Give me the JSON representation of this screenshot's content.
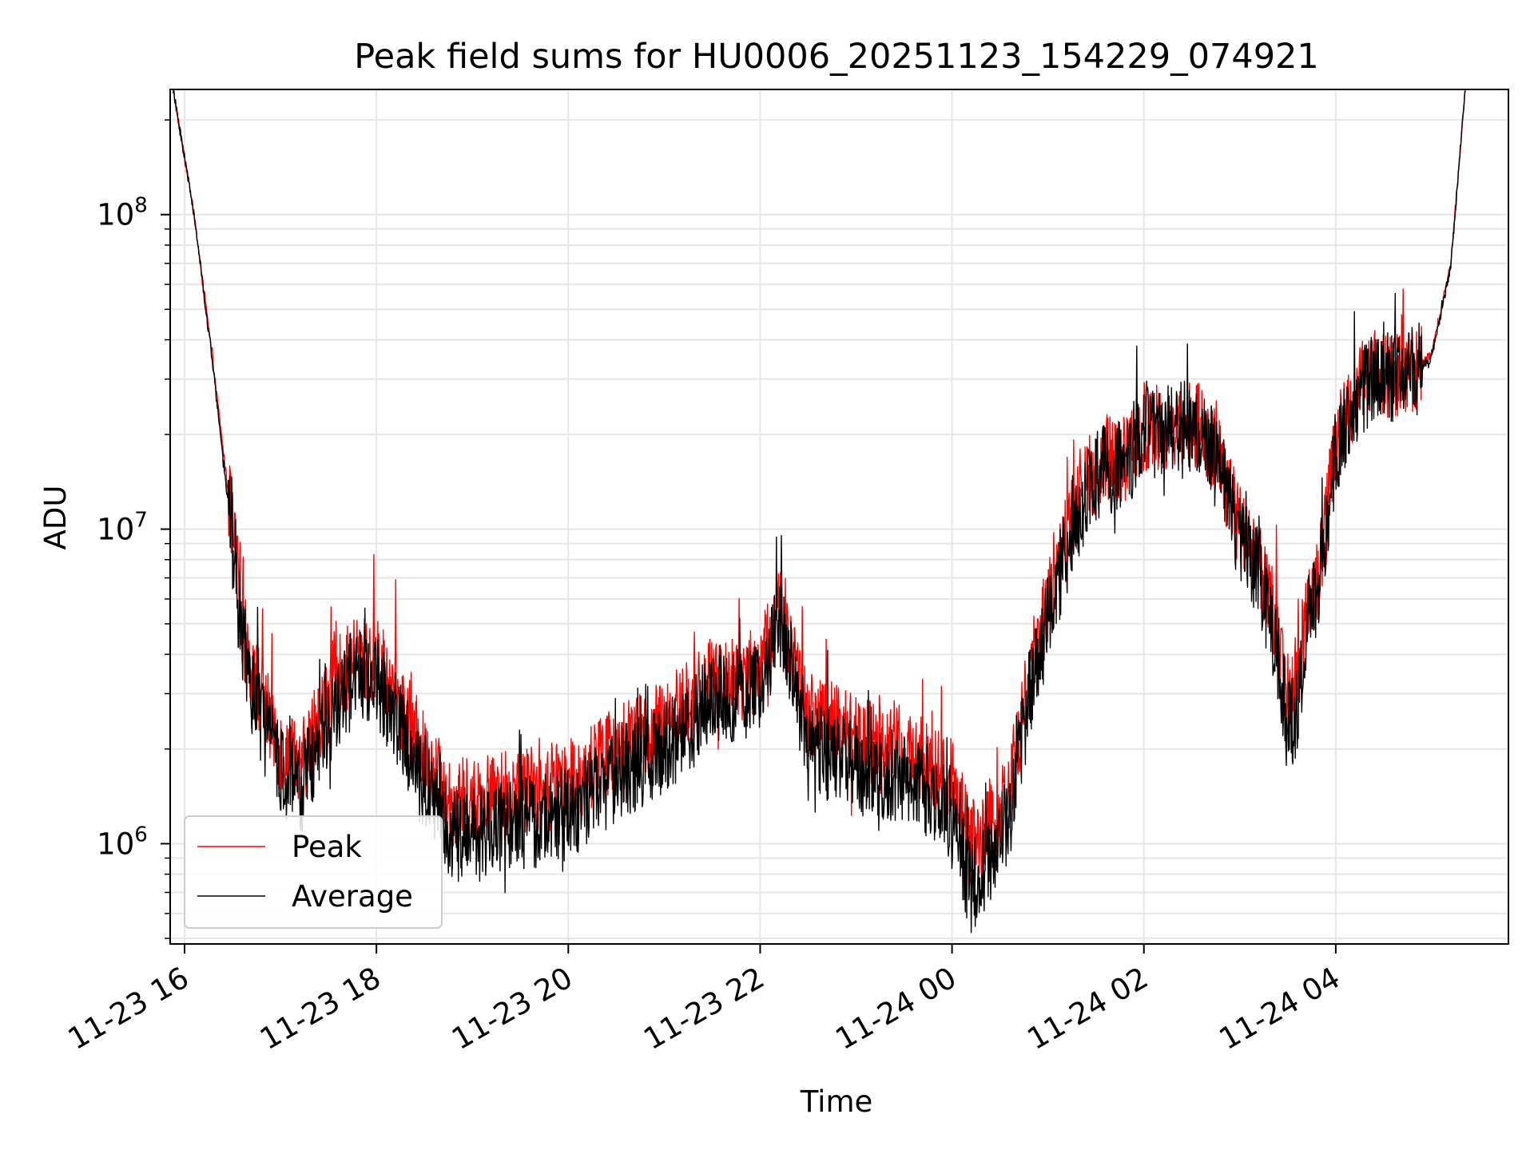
{
  "chart_data": {
    "type": "line",
    "title": "Peak field sums for HU0006_20251123_154229_074921",
    "xlabel": "Time",
    "ylabel": "ADU",
    "yscale": "log",
    "ylim": [
      480000,
      250000000
    ],
    "xlim_hours": [
      -0.15,
      13.8
    ],
    "x_reference": "2025-11-23 16:00",
    "grid": true,
    "legend_position": "lower-left",
    "x_ticks": [
      {
        "hours": 0,
        "label": "11-23 16"
      },
      {
        "hours": 2,
        "label": "11-23 18"
      },
      {
        "hours": 4,
        "label": "11-23 20"
      },
      {
        "hours": 6,
        "label": "11-23 22"
      },
      {
        "hours": 8,
        "label": "11-24 00"
      },
      {
        "hours": 10,
        "label": "11-24 02"
      },
      {
        "hours": 12,
        "label": "11-24 04"
      }
    ],
    "y_ticks": [
      {
        "value": 1000000,
        "base": "10",
        "exp": "6"
      },
      {
        "value": 10000000,
        "base": "10",
        "exp": "7"
      },
      {
        "value": 100000000,
        "base": "10",
        "exp": "8"
      }
    ],
    "series": [
      {
        "name": "Peak",
        "color": "#ff0000",
        "noise_amp": 0.14,
        "x_hours": [
          -0.12,
          0.1,
          0.3,
          0.5,
          0.6,
          0.75,
          1.0,
          1.2,
          1.4,
          1.6,
          1.8,
          2.0,
          2.2,
          2.5,
          2.8,
          3.0,
          3.5,
          4.0,
          4.5,
          5.0,
          5.5,
          5.8,
          6.0,
          6.2,
          6.3,
          6.5,
          6.7,
          7.0,
          7.5,
          7.8,
          8.0,
          8.2,
          8.4,
          8.6,
          8.8,
          9.0,
          9.2,
          9.4,
          9.6,
          9.8,
          10.0,
          10.2,
          10.4,
          10.6,
          10.8,
          11.0,
          11.2,
          11.4,
          11.5,
          11.6,
          11.7,
          11.8,
          12.0,
          12.2,
          12.4,
          12.6,
          12.8,
          13.0,
          13.2,
          13.35
        ],
        "values": [
          250000000,
          100000000,
          33000000,
          10000000,
          5200000,
          3200000,
          2000000,
          1700000,
          2500000,
          3300000,
          3900000,
          3800000,
          3000000,
          1900000,
          1350000,
          1400000,
          1450000,
          1550000,
          2000000,
          2400000,
          3300000,
          3400000,
          3600000,
          5800000,
          4700000,
          2600000,
          2400000,
          2200000,
          2000000,
          1800000,
          1550000,
          1000000,
          1100000,
          1500000,
          3300000,
          5800000,
          9500000,
          14000000,
          17000000,
          16000000,
          21000000,
          21000000,
          22000000,
          21500000,
          16000000,
          10000000,
          8000000,
          4500000,
          2700000,
          3200000,
          5500000,
          6500000,
          19000000,
          27000000,
          32000000,
          31000000,
          32000000,
          36000000,
          70000000,
          250000000
        ]
      },
      {
        "name": "Average",
        "color": "#000000",
        "noise_amp": 0.15,
        "x_hours": [
          -0.12,
          0.1,
          0.3,
          0.5,
          0.6,
          0.75,
          1.0,
          1.2,
          1.4,
          1.6,
          1.8,
          2.0,
          2.2,
          2.5,
          2.8,
          3.0,
          3.5,
          4.0,
          4.5,
          5.0,
          5.5,
          5.8,
          6.0,
          6.2,
          6.3,
          6.5,
          6.7,
          7.0,
          7.5,
          7.8,
          8.0,
          8.2,
          8.4,
          8.6,
          8.8,
          9.0,
          9.2,
          9.4,
          9.6,
          9.8,
          10.0,
          10.2,
          10.4,
          10.6,
          10.8,
          11.0,
          11.2,
          11.4,
          11.5,
          11.6,
          11.7,
          11.8,
          12.0,
          12.2,
          12.4,
          12.6,
          12.8,
          13.0,
          13.2,
          13.35
        ],
        "values": [
          250000000,
          100000000,
          32000000,
          9000000,
          4400000,
          2700000,
          1700000,
          1450000,
          2100000,
          2800000,
          3400000,
          3300000,
          2500000,
          1500000,
          1050000,
          1100000,
          1150000,
          1250000,
          1650000,
          2000000,
          2900000,
          3000000,
          3150000,
          5100000,
          4000000,
          2100000,
          1900000,
          1750000,
          1600000,
          1450000,
          1250000,
          720000,
          850000,
          1250000,
          2900000,
          5200000,
          8700000,
          13000000,
          15800000,
          15000000,
          20000000,
          20000000,
          21000000,
          20500000,
          15000000,
          9200000,
          7300000,
          4000000,
          2300000,
          2700000,
          5000000,
          6000000,
          18000000,
          26000000,
          31000000,
          30500000,
          31500000,
          35000000,
          69000000,
          250000000
        ]
      }
    ]
  }
}
